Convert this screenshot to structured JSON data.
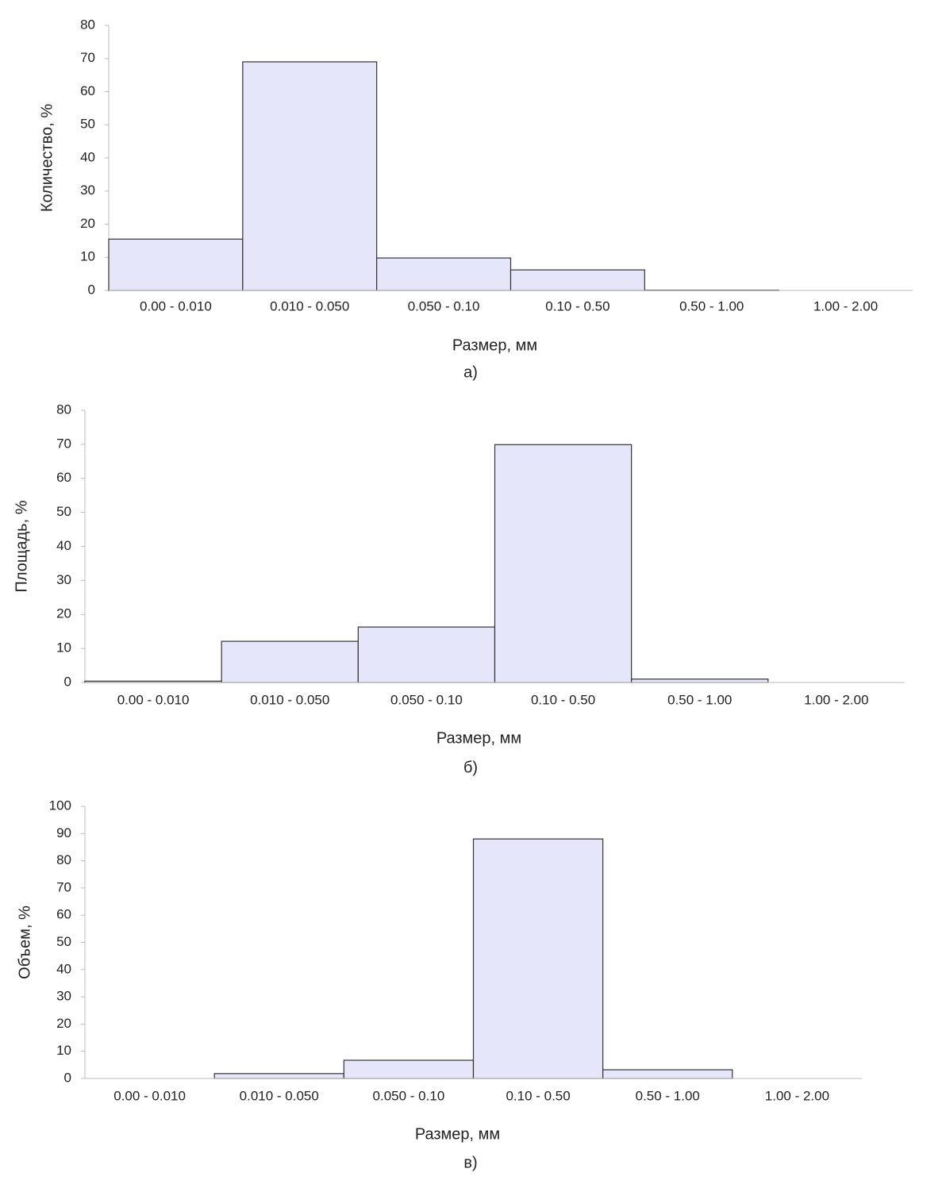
{
  "chart_data": [
    {
      "type": "bar",
      "y_label": "Количество, %",
      "x_label": "Размер, мм",
      "caption": "а)",
      "categories": [
        "0.00 - 0.010",
        "0.010 - 0.050",
        "0.050 - 0.10",
        "0.10 - 0.50",
        "0.50 - 1.00",
        "1.00 - 2.00"
      ],
      "values": [
        15.5,
        69,
        9.8,
        6.2,
        0.1,
        0
      ],
      "color": "#e6e6fa",
      "ylim": [
        0,
        80
      ],
      "yticks": [
        0,
        10,
        20,
        30,
        40,
        50,
        60,
        70,
        80
      ],
      "grid": false
    },
    {
      "type": "bar",
      "y_label": "Площадь, %",
      "x_label": "Размер, мм",
      "caption": "б)",
      "categories": [
        "0.00 - 0.010",
        "0.010 - 0.050",
        "0.050 - 0.10",
        "0.10 - 0.50",
        "0.50 - 1.00",
        "1.00 - 2.00"
      ],
      "values": [
        0.4,
        12.1,
        16.3,
        69.9,
        1.0,
        0
      ],
      "color": "#e6e6fa",
      "ylim": [
        0,
        80
      ],
      "yticks": [
        0,
        10,
        20,
        30,
        40,
        50,
        60,
        70,
        80
      ],
      "grid": false
    },
    {
      "type": "bar",
      "y_label": "Объем, %",
      "x_label": "Размер, мм",
      "caption": "в)",
      "categories": [
        "0.00 - 0.010",
        "0.010 - 0.050",
        "0.050 - 0.10",
        "0.10 - 0.50",
        "0.50 - 1.00",
        "1.00 - 2.00"
      ],
      "values": [
        0,
        1.8,
        6.7,
        88,
        3.2,
        0
      ],
      "color": "#e6e6fa",
      "ylim": [
        0,
        100
      ],
      "yticks": [
        0,
        10,
        20,
        30,
        40,
        50,
        60,
        70,
        80,
        90,
        100
      ],
      "grid": false
    }
  ]
}
